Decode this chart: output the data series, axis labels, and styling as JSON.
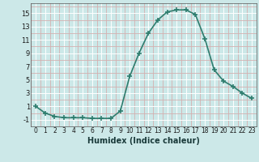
{
  "x": [
    0,
    1,
    2,
    3,
    4,
    5,
    6,
    7,
    8,
    9,
    10,
    11,
    12,
    13,
    14,
    15,
    16,
    17,
    18,
    19,
    20,
    21,
    22,
    23
  ],
  "y": [
    1,
    0,
    -0.5,
    -0.7,
    -0.7,
    -0.7,
    -0.8,
    -0.8,
    -0.8,
    0.3,
    5.5,
    9.0,
    12.0,
    14.0,
    15.2,
    15.5,
    15.5,
    14.8,
    11.2,
    6.5,
    4.8,
    4.0,
    3.0,
    2.2
  ],
  "line_color": "#2e7d6e",
  "marker_color": "#2e7d6e",
  "bg_color": "#cce8e8",
  "grid_white_color": "#ffffff",
  "grid_pink_color": "#d4b0b0",
  "xlabel": "Humidex (Indice chaleur)",
  "xlim": [
    -0.5,
    23.5
  ],
  "ylim": [
    -2.0,
    16.5
  ],
  "yticks": [
    -1,
    1,
    3,
    5,
    7,
    9,
    11,
    13,
    15
  ],
  "yticks_minor": [
    0,
    2,
    4,
    6,
    8,
    10,
    12,
    14,
    16
  ],
  "xticks": [
    0,
    1,
    2,
    3,
    4,
    5,
    6,
    7,
    8,
    9,
    10,
    11,
    12,
    13,
    14,
    15,
    16,
    17,
    18,
    19,
    20,
    21,
    22,
    23
  ],
  "linewidth": 1.2,
  "markersize": 4.0,
  "xlabel_fontsize": 7,
  "tick_fontsize": 6
}
